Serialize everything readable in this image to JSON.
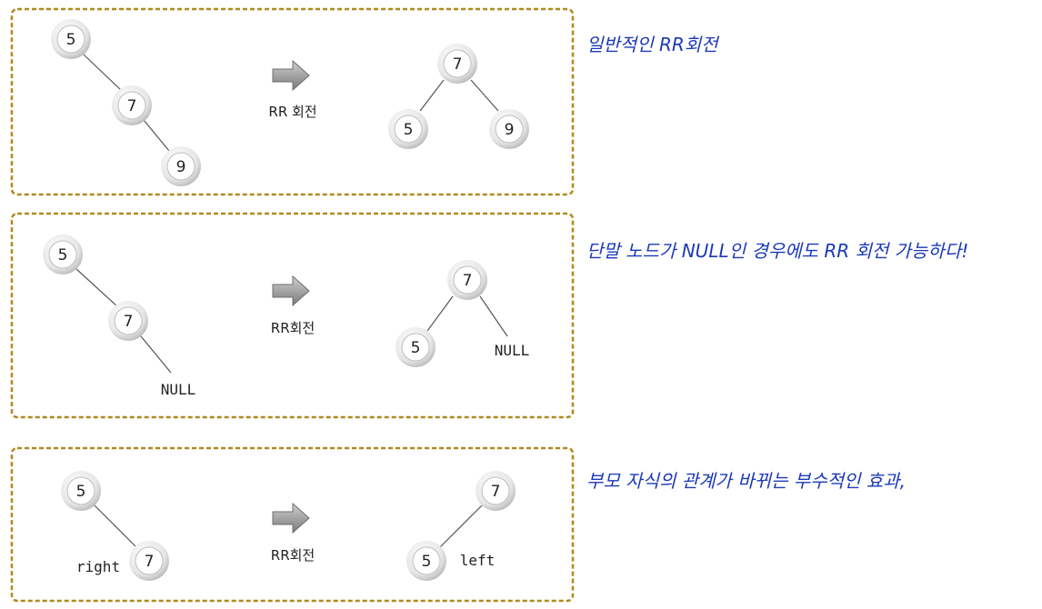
{
  "panels": [
    {
      "arrow_label": "RR 회전",
      "note": "일반적인 RR회전",
      "before": {
        "root": "5",
        "middle": "7",
        "leaf": "9"
      },
      "after": {
        "root": "7",
        "left": "5",
        "right": "9"
      }
    },
    {
      "arrow_label": "RR회전",
      "note": "단말 노드가 NULL인 경우에도 RR 회전 가능하다!",
      "before": {
        "root": "5",
        "middle": "7",
        "leaf": "NULL"
      },
      "after": {
        "root": "7",
        "left": "5",
        "right": "NULL"
      }
    },
    {
      "arrow_label": "RR회전",
      "note": "부모 자식의 관계가 바뀌는 부수적인 효과,",
      "before": {
        "root": "5",
        "child": "7",
        "child_label": "right"
      },
      "after": {
        "root": "7",
        "child": "5",
        "child_label": "left"
      }
    }
  ],
  "colors": {
    "frame": "#b08a1e",
    "note": "#1c39b8",
    "node_ring": "#999999",
    "arrow": "#8c8c8c"
  }
}
